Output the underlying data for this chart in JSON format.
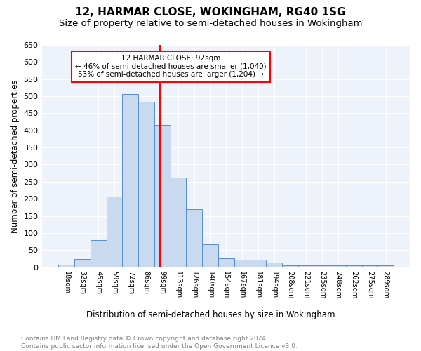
{
  "title": "12, HARMAR CLOSE, WOKINGHAM, RG40 1SG",
  "subtitle": "Size of property relative to semi-detached houses in Wokingham",
  "xlabel": "Distribution of semi-detached houses by size in Wokingham",
  "ylabel": "Number of semi-detached properties",
  "bin_labels": [
    "18sqm",
    "32sqm",
    "45sqm",
    "59sqm",
    "72sqm",
    "86sqm",
    "99sqm",
    "113sqm",
    "126sqm",
    "140sqm",
    "154sqm",
    "167sqm",
    "181sqm",
    "194sqm",
    "208sqm",
    "221sqm",
    "235sqm",
    "248sqm",
    "262sqm",
    "275sqm",
    "289sqm"
  ],
  "bar_heights": [
    7,
    23,
    80,
    207,
    507,
    483,
    416,
    261,
    170,
    66,
    25,
    22,
    22,
    13,
    5,
    5,
    6,
    5,
    5,
    5,
    5
  ],
  "bar_color": "#c9d9f0",
  "bar_edge_color": "#5b8dc9",
  "red_line_x": 5.85,
  "annotation_text": "12 HARMAR CLOSE: 92sqm\n← 46% of semi-detached houses are smaller (1,040)\n53% of semi-detached houses are larger (1,204) →",
  "annotation_box_color": "white",
  "annotation_box_edge": "red",
  "red_line_color": "red",
  "ylim": [
    0,
    650
  ],
  "yticks": [
    0,
    50,
    100,
    150,
    200,
    250,
    300,
    350,
    400,
    450,
    500,
    550,
    600,
    650
  ],
  "footer_text": "Contains HM Land Registry data © Crown copyright and database right 2024.\nContains public sector information licensed under the Open Government Licence v3.0.",
  "title_fontsize": 11,
  "subtitle_fontsize": 9.5,
  "xlabel_fontsize": 8.5,
  "ylabel_fontsize": 8.5,
  "footer_fontsize": 6.5,
  "plot_background": "#eef2fb"
}
